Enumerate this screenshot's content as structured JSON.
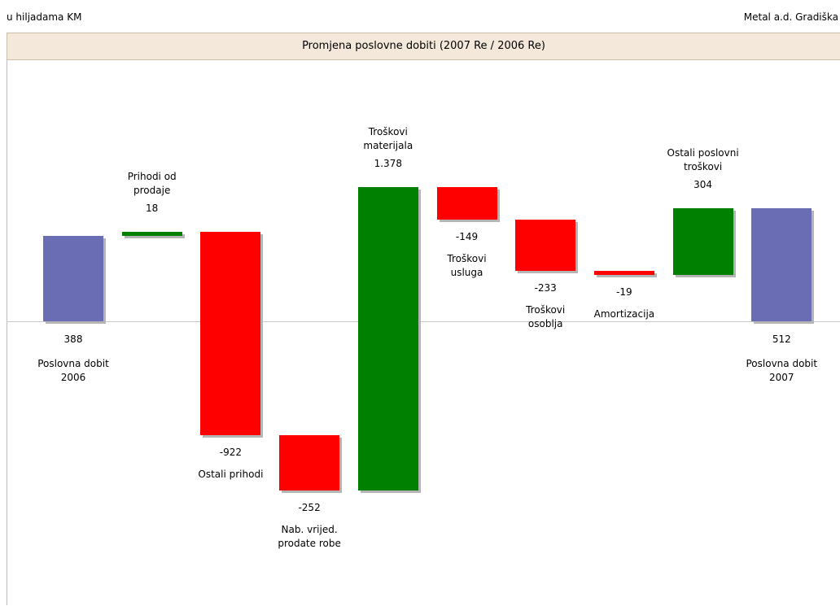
{
  "chart_data": {
    "type": "waterfall",
    "unit_note": "u hiljadama KM",
    "company": "Metal a.d. Gradiška",
    "title": "Promjena poslovne dobiti (2007 Re / 2006 Re)",
    "categories": [
      "Poslovna dobit\n2006",
      "Prihodi od\nprodaje",
      "Ostali prihodi",
      "Nab. vrijed.\nprodate robe",
      "Troškovi\nmaterijala",
      "Troškovi\nusluga",
      "Troškovi\nosoblja",
      "Amortizacija",
      "Ostali poslovni\ntroškovi",
      "Poslovna dobit\n2007"
    ],
    "values": [
      388,
      18,
      -922,
      -252,
      1378,
      -149,
      -233,
      -19,
      304,
      512
    ],
    "value_labels": [
      "388",
      "18",
      "-922",
      "-252",
      "1.378",
      "-149",
      "-233",
      "-19",
      "304",
      "512"
    ],
    "colors": [
      "#6a6db3",
      "#008000",
      "#ff0000",
      "#ff0000",
      "#008000",
      "#ff0000",
      "#ff0000",
      "#ff0000",
      "#008000",
      "#6a6db3"
    ],
    "ylim": [
      -1290,
      1180
    ]
  }
}
